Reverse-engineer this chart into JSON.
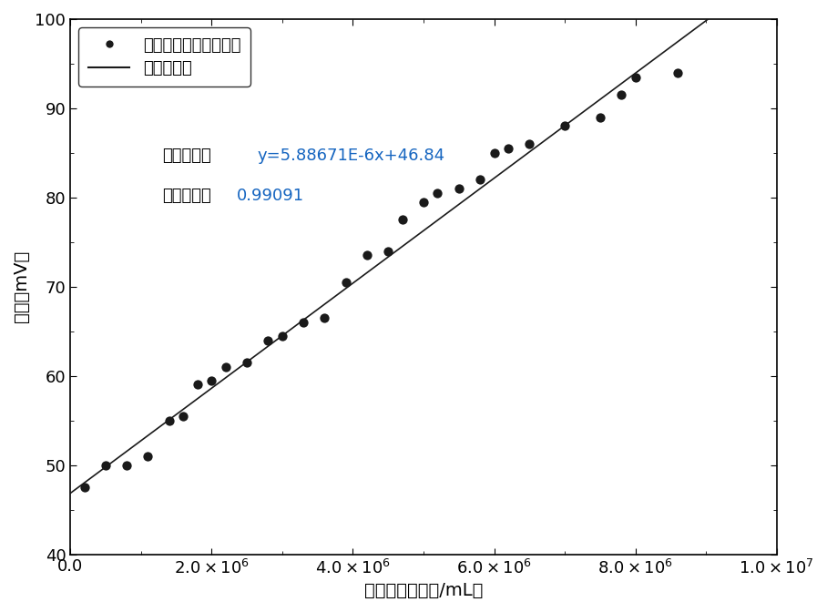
{
  "x_data": [
    200000,
    500000,
    800000,
    1100000,
    1400000,
    1600000,
    1800000,
    2000000,
    2200000,
    2500000,
    2800000,
    3000000,
    3300000,
    3600000,
    3900000,
    4200000,
    4500000,
    4700000,
    5000000,
    5200000,
    5500000,
    5800000,
    6000000,
    6200000,
    6500000,
    7000000,
    7500000,
    7800000,
    8000000,
    8600000
  ],
  "y_data": [
    47.5,
    50.0,
    50.0,
    51.0,
    55.0,
    55.5,
    59.0,
    59.5,
    61.0,
    61.5,
    64.0,
    64.5,
    66.0,
    66.5,
    70.5,
    73.5,
    74.0,
    77.5,
    79.5,
    80.5,
    81.0,
    82.0,
    85.0,
    85.5,
    86.0,
    88.0,
    89.0,
    91.5,
    93.5,
    94.0
  ],
  "slope": 5.88671e-06,
  "intercept": 46.84,
  "x_line_start": 0,
  "x_line_end": 9500000,
  "xlim": [
    0,
    10000000.0
  ],
  "ylim": [
    40,
    100
  ],
  "xlabel": "小球藻浓度（个/mL）",
  "ylabel": "电压（mV）",
  "legend_dot": "电压随小球藻浓度变化",
  "legend_line": "线性拟合线",
  "eq_label_prefix": "拟合方程：",
  "eq_label_value": "y=5.88671E-6x+46.84",
  "corr_label_prefix": "相关系数：",
  "corr_label_value": "0.99091",
  "dot_color": "#1a1a1a",
  "line_color": "#1a1a1a",
  "eq_color": "#1565c0",
  "annotation_text_color": "#000000",
  "background_color": "#ffffff",
  "dot_size": 55,
  "yticks": [
    40,
    50,
    60,
    70,
    80,
    90,
    100
  ],
  "xticks": [
    0,
    2000000,
    4000000,
    6000000,
    8000000,
    10000000
  ],
  "tick_label_fontsize": 13,
  "axis_label_fontsize": 14,
  "legend_fontsize": 13,
  "annotation_fontsize": 13
}
